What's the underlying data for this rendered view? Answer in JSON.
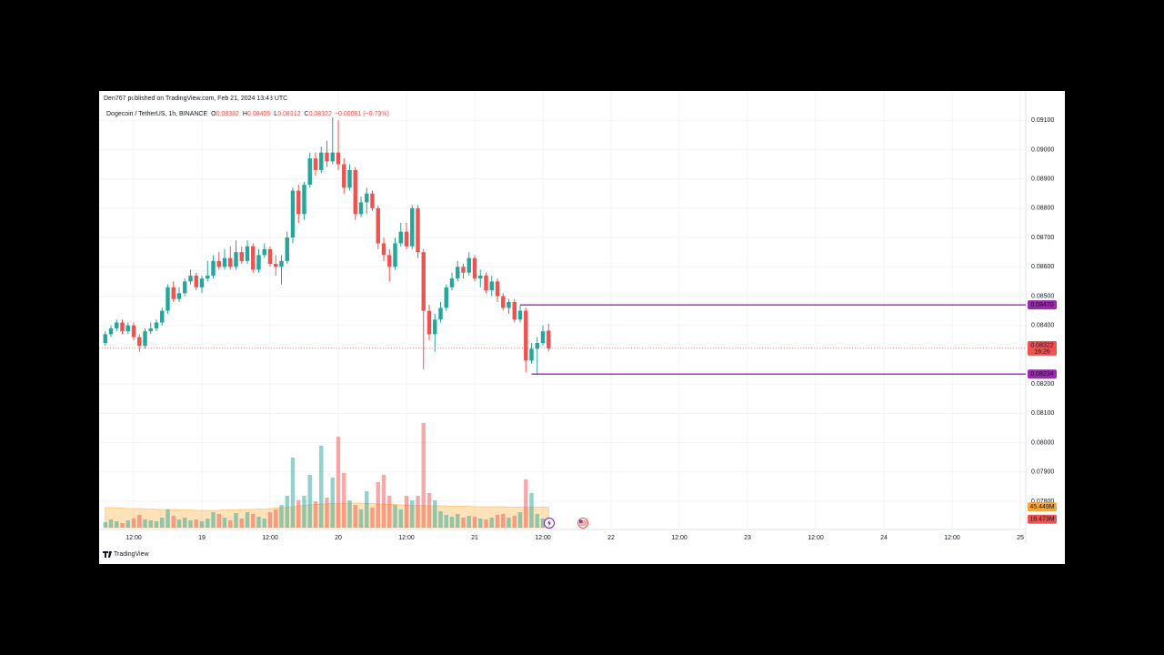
{
  "publisher": "Den767 published on TradingView.com, Feb 21, 2024 13:43 UTC",
  "footer": "TradingView",
  "chart_data": {
    "type": "candlestick",
    "symbol": "Dogecoin / TetherUS, 1h, BINANCE",
    "ohlc_legend": [
      {
        "key": "O",
        "value": "0.08382"
      },
      {
        "key": "H",
        "value": "0.08405"
      },
      {
        "key": "L",
        "value": "0.08312"
      },
      {
        "key": "C",
        "value": "0.08322"
      }
    ],
    "change": "−0.00061 (−0.73%)",
    "up_color": "#26a69a",
    "down_color": "#ef5350",
    "ma_color": "#ff9800",
    "level_color": "#9c27b0",
    "grid": true,
    "x": [
      7,
      8,
      9,
      10,
      11,
      12,
      13,
      14,
      15,
      16,
      17,
      18,
      19,
      20,
      21,
      22,
      23,
      24,
      25,
      26,
      27,
      28,
      29,
      30,
      31,
      32,
      33,
      34,
      35,
      36,
      37,
      38,
      39,
      40,
      41,
      42,
      43,
      44,
      45,
      46,
      47,
      48,
      49,
      50,
      51,
      52,
      53,
      54,
      55,
      56,
      57,
      58,
      59,
      60,
      61,
      62,
      63,
      64,
      65,
      66,
      67,
      68,
      69,
      70,
      71,
      72,
      73,
      74,
      75,
      76,
      77,
      78,
      79,
      80,
      81,
      82,
      83,
      84,
      85
    ],
    "open": [
      0.0834,
      0.0837,
      0.0839,
      0.0841,
      0.0838,
      0.084,
      0.0836,
      0.0833,
      0.0838,
      0.0839,
      0.0841,
      0.0845,
      0.0853,
      0.0849,
      0.0851,
      0.0855,
      0.0857,
      0.0853,
      0.0856,
      0.0857,
      0.0862,
      0.086,
      0.0863,
      0.086,
      0.0865,
      0.0862,
      0.0867,
      0.0859,
      0.0864,
      0.0866,
      0.0861,
      0.086,
      0.0862,
      0.087,
      0.0886,
      0.0878,
      0.0888,
      0.0897,
      0.0893,
      0.0899,
      0.0896,
      0.0899,
      0.0895,
      0.0887,
      0.0893,
      0.0878,
      0.0882,
      0.0885,
      0.088,
      0.0868,
      0.0864,
      0.086,
      0.0868,
      0.0872,
      0.0867,
      0.088,
      0.0865,
      0.0845,
      0.0837,
      0.0842,
      0.0846,
      0.0853,
      0.0856,
      0.086,
      0.0858,
      0.0863,
      0.0856,
      0.0857,
      0.0852,
      0.0855,
      0.085,
      0.0846,
      0.0848,
      0.0842,
      0.0845,
      0.0828,
      0.0832,
      0.0834,
      0.08382
    ],
    "high": [
      0.0838,
      0.084,
      0.0842,
      0.0842,
      0.0841,
      0.0841,
      0.0837,
      0.0839,
      0.0841,
      0.0842,
      0.0846,
      0.0854,
      0.0855,
      0.0853,
      0.0856,
      0.0859,
      0.0858,
      0.0857,
      0.0862,
      0.0864,
      0.0865,
      0.0866,
      0.0867,
      0.0869,
      0.0867,
      0.0869,
      0.0868,
      0.0866,
      0.0868,
      0.0867,
      0.0864,
      0.0864,
      0.0872,
      0.0887,
      0.0888,
      0.0889,
      0.0899,
      0.0899,
      0.0901,
      0.0903,
      0.0911,
      0.091,
      0.0897,
      0.0895,
      0.0894,
      0.0884,
      0.0887,
      0.0886,
      0.0881,
      0.087,
      0.0866,
      0.087,
      0.0875,
      0.0875,
      0.0881,
      0.0881,
      0.0866,
      0.0847,
      0.0844,
      0.0848,
      0.0854,
      0.0858,
      0.0862,
      0.0861,
      0.0865,
      0.0864,
      0.0859,
      0.0858,
      0.0857,
      0.0856,
      0.0851,
      0.0849,
      0.0849,
      0.0847,
      0.0846,
      0.0834,
      0.0836,
      0.084,
      0.08405
    ],
    "low": [
      0.0833,
      0.0836,
      0.0838,
      0.0837,
      0.0837,
      0.0835,
      0.0831,
      0.0832,
      0.0837,
      0.0838,
      0.084,
      0.0844,
      0.0848,
      0.0848,
      0.085,
      0.0854,
      0.0852,
      0.0851,
      0.0855,
      0.0856,
      0.0859,
      0.0859,
      0.0859,
      0.0859,
      0.0861,
      0.0861,
      0.0858,
      0.0858,
      0.0863,
      0.086,
      0.0857,
      0.0854,
      0.0861,
      0.0868,
      0.0875,
      0.0876,
      0.0887,
      0.0891,
      0.0892,
      0.0894,
      0.0895,
      0.0893,
      0.0885,
      0.0886,
      0.0876,
      0.0877,
      0.0878,
      0.0879,
      0.0866,
      0.0862,
      0.0855,
      0.0859,
      0.0867,
      0.0866,
      0.0866,
      0.0863,
      0.0825,
      0.0835,
      0.0831,
      0.0841,
      0.0845,
      0.0852,
      0.0855,
      0.0856,
      0.0857,
      0.0855,
      0.0853,
      0.0851,
      0.085,
      0.0848,
      0.0845,
      0.0844,
      0.0841,
      0.0841,
      0.0824,
      0.0827,
      0.0823,
      0.0833,
      0.08312
    ],
    "close": [
      0.0837,
      0.0839,
      0.0841,
      0.0838,
      0.084,
      0.0836,
      0.0833,
      0.0838,
      0.0839,
      0.0841,
      0.0845,
      0.0853,
      0.0849,
      0.0851,
      0.0855,
      0.0857,
      0.0853,
      0.0856,
      0.0857,
      0.0862,
      0.086,
      0.0863,
      0.086,
      0.0865,
      0.0862,
      0.0867,
      0.0859,
      0.0864,
      0.0866,
      0.0861,
      0.086,
      0.0862,
      0.087,
      0.0886,
      0.0878,
      0.0888,
      0.0897,
      0.0893,
      0.0899,
      0.0896,
      0.0899,
      0.0895,
      0.0887,
      0.0893,
      0.0878,
      0.0882,
      0.0885,
      0.088,
      0.0868,
      0.0864,
      0.086,
      0.0868,
      0.0872,
      0.0867,
      0.088,
      0.0865,
      0.0845,
      0.0837,
      0.0842,
      0.0846,
      0.0853,
      0.0856,
      0.086,
      0.0858,
      0.0863,
      0.0856,
      0.0857,
      0.0852,
      0.0855,
      0.085,
      0.0846,
      0.0848,
      0.0842,
      0.0845,
      0.0828,
      0.0832,
      0.0834,
      0.0838,
      0.08322
    ],
    "volume": [
      12,
      18,
      14,
      10,
      16,
      20,
      28,
      18,
      16,
      14,
      22,
      40,
      26,
      18,
      22,
      16,
      18,
      14,
      20,
      34,
      30,
      22,
      16,
      32,
      20,
      34,
      30,
      24,
      20,
      34,
      40,
      50,
      70,
      154,
      60,
      70,
      116,
      58,
      180,
      66,
      110,
      200,
      120,
      60,
      50,
      40,
      80,
      44,
      100,
      116,
      70,
      50,
      40,
      70,
      60,
      70,
      230,
      76,
      60,
      36,
      28,
      24,
      30,
      22,
      26,
      24,
      20,
      18,
      22,
      28,
      30,
      22,
      26,
      34,
      106,
      76,
      30,
      20,
      18.473
    ],
    "volume_ma": [
      44,
      44,
      43,
      43,
      42,
      42,
      42,
      41,
      41,
      40,
      40,
      40,
      40,
      39,
      39,
      39,
      38,
      38,
      38,
      38,
      38,
      39,
      39,
      39,
      40,
      40,
      40,
      41,
      41,
      42,
      43,
      44,
      45,
      46,
      48,
      49,
      50,
      51,
      52,
      52,
      53,
      53,
      54,
      54,
      54,
      54,
      53,
      53,
      52,
      52,
      51,
      51,
      50,
      50,
      49,
      49,
      49,
      48,
      48,
      48,
      48,
      47,
      47,
      47,
      47,
      46,
      46,
      46,
      46,
      46,
      46,
      45,
      45,
      45,
      45,
      45,
      45,
      45,
      45.449
    ],
    "volume_label": "18.473M",
    "volume_ma_label": "45.449M",
    "volume_ylim": [
      0,
      240
    ],
    "last_price": {
      "label": "0.08322",
      "countdown": "16:26"
    },
    "levels": [
      {
        "value": 0.0847,
        "label": "0.08470",
        "start": 80
      },
      {
        "value": 0.08234,
        "label": "0.08234",
        "start": 82
      }
    ],
    "xlim": [
      5.92,
      168.96
    ],
    "xticks": [
      {
        "value": 12,
        "label": "12:00"
      },
      {
        "value": 24,
        "label": "19"
      },
      {
        "value": 36,
        "label": "12:00"
      },
      {
        "value": 48,
        "label": "20"
      },
      {
        "value": 60,
        "label": "12:00"
      },
      {
        "value": 72,
        "label": "21"
      },
      {
        "value": 84,
        "label": "12:00"
      },
      {
        "value": 96,
        "label": "22"
      },
      {
        "value": 108,
        "label": "12:00"
      },
      {
        "value": 120,
        "label": "23"
      },
      {
        "value": 132,
        "label": "12:00"
      },
      {
        "value": 144,
        "label": "24"
      },
      {
        "value": 156,
        "label": "12:00"
      },
      {
        "value": 168,
        "label": "25"
      }
    ],
    "ylim": [
      0.0771,
      0.092
    ],
    "yticks": [
      {
        "value": 0.091,
        "label": "0.09100"
      },
      {
        "value": 0.09,
        "label": "0.09000"
      },
      {
        "value": 0.089,
        "label": "0.08900"
      },
      {
        "value": 0.088,
        "label": "0.08800"
      },
      {
        "value": 0.087,
        "label": "0.08700"
      },
      {
        "value": 0.086,
        "label": "0.08600"
      },
      {
        "value": 0.085,
        "label": "0.08500"
      },
      {
        "value": 0.084,
        "label": "0.08400"
      },
      {
        "value": 0.082,
        "label": "0.08200"
      },
      {
        "value": 0.081,
        "label": "0.08100"
      },
      {
        "value": 0.08,
        "label": "0.08000"
      },
      {
        "value": 0.079,
        "label": "0.07900"
      },
      {
        "value": 0.078,
        "label": "0.07800"
      }
    ]
  }
}
